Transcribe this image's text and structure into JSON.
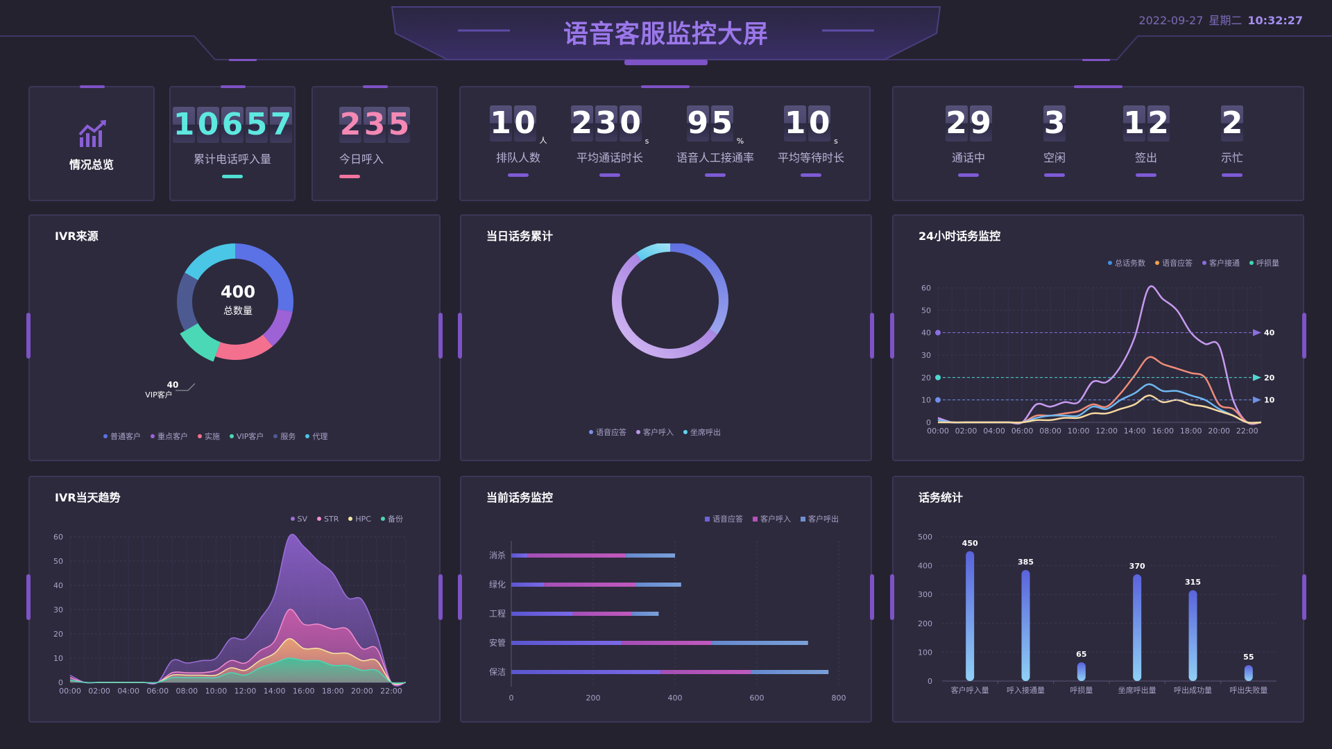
{
  "header": {
    "title": "语音客服监控大屏",
    "date": "2022-09-27",
    "weekday": "星期二",
    "time": "10:32:27"
  },
  "overview": {
    "label": "情况总览",
    "icon": "chart-trend-icon"
  },
  "top_stats": [
    {
      "value": "10657",
      "label": "累计电话呼入量",
      "color": "#4fe0d4"
    },
    {
      "value": "235",
      "label": "今日呼入",
      "color": "#f3739f"
    }
  ],
  "queue_stats": [
    {
      "value": "10",
      "unit": "人",
      "label": "排队人数"
    },
    {
      "value": "230",
      "unit": "s",
      "label": "平均通话时长"
    },
    {
      "value": "95",
      "unit": "%",
      "label": "语音人工接通率"
    },
    {
      "value": "10",
      "unit": "s",
      "label": "平均等待时长"
    }
  ],
  "agent_stats": [
    {
      "value": "29",
      "label": "通话中"
    },
    {
      "value": "3",
      "label": "空闲"
    },
    {
      "value": "12",
      "label": "签出"
    },
    {
      "value": "2",
      "label": "示忙"
    }
  ],
  "ivr_source": {
    "title": "IVR来源",
    "center_value": "400",
    "center_label": "总数量",
    "callout_value": "40",
    "callout_label": "VIP客户",
    "legend": [
      {
        "name": "普通客户",
        "color": "#5a72e6"
      },
      {
        "name": "重点客户",
        "color": "#9d62d6"
      },
      {
        "name": "实施",
        "color": "#f4708f"
      },
      {
        "name": "VIP客户",
        "color": "#4bd8b7"
      },
      {
        "name": "服务",
        "color": "#4d5a92"
      },
      {
        "name": "代理",
        "color": "#4ac6e6"
      }
    ]
  },
  "daily_calls": {
    "title": "当日话务累计",
    "legend": [
      {
        "name": "语音应答",
        "color": "#7d8fe8"
      },
      {
        "name": "客户呼入",
        "color": "#b89ae9"
      },
      {
        "name": "坐席呼出",
        "color": "#5fd6ef"
      }
    ]
  },
  "monitor_24h": {
    "title": "24小时话务监控",
    "legend": [
      {
        "name": "总话务数",
        "color": "#3f8fe6"
      },
      {
        "name": "语音应答",
        "color": "#f2a14c"
      },
      {
        "name": "客户接通",
        "color": "#8a6fe0"
      },
      {
        "name": "呼损量",
        "color": "#3fd8b0"
      }
    ],
    "ref_labels": [
      "40",
      "20",
      "10"
    ]
  },
  "ivr_trend": {
    "title": "IVR当天趋势",
    "legend": [
      {
        "name": "SV",
        "color": "#9b6fd9"
      },
      {
        "name": "STR",
        "color": "#f28ed0"
      },
      {
        "name": "HPC",
        "color": "#f7e6a6"
      },
      {
        "name": "备份",
        "color": "#4dd6b4"
      }
    ]
  },
  "current_monitor": {
    "title": "当前话务监控",
    "legend": [
      {
        "name": "语音应答",
        "color": "#6e62d9"
      },
      {
        "name": "客户呼入",
        "color": "#b353b8"
      },
      {
        "name": "客户呼出",
        "color": "#6f8fcf"
      }
    ]
  },
  "call_stats": {
    "title": "话务统计"
  },
  "chart_data": [
    {
      "id": "ivr-source",
      "type": "pie",
      "categories": [
        "普通客户",
        "重点客户",
        "实施",
        "VIP客户",
        "服务",
        "代理"
      ],
      "values": [
        100,
        40,
        60,
        40,
        60,
        60
      ],
      "total": 400
    },
    {
      "id": "daily-calls",
      "type": "pie",
      "categories": [
        "语音应答",
        "客户呼入",
        "坐席呼出"
      ],
      "values": [
        35,
        55,
        10
      ]
    },
    {
      "id": "monitor-24h",
      "type": "line",
      "x": [
        "00:00",
        "01:00",
        "02:00",
        "03:00",
        "04:00",
        "05:00",
        "06:00",
        "07:00",
        "08:00",
        "09:00",
        "10:00",
        "11:00",
        "12:00",
        "13:00",
        "14:00",
        "15:00",
        "16:00",
        "17:00",
        "18:00",
        "19:00",
        "20:00",
        "21:00",
        "22:00",
        "23:00"
      ],
      "xticks": [
        "00:00",
        "02:00",
        "04:00",
        "06:00",
        "08:00",
        "10:00",
        "12:00",
        "14:00",
        "16:00",
        "18:00",
        "20:00",
        "22:00"
      ],
      "ylim": [
        0,
        60
      ],
      "yticks": [
        0,
        10,
        20,
        30,
        40,
        50,
        60
      ],
      "series": [
        {
          "color": "#c79af0",
          "values": [
            2,
            0,
            0,
            0,
            0,
            0,
            0,
            8,
            7,
            9,
            9,
            18,
            18,
            25,
            38,
            60,
            55,
            50,
            40,
            35,
            34,
            10,
            0,
            0
          ]
        },
        {
          "color": "#f08c7a",
          "values": [
            1,
            0,
            0,
            0,
            0,
            0,
            0,
            3,
            3,
            4,
            5,
            8,
            7,
            13,
            21,
            29,
            26,
            24,
            22,
            20,
            8,
            6,
            0,
            0
          ]
        },
        {
          "color": "#6fb8f0",
          "values": [
            1,
            0,
            0,
            0,
            0,
            0,
            0,
            2,
            3,
            3,
            3,
            7,
            6,
            10,
            13,
            17,
            14,
            14,
            12,
            10,
            6,
            3,
            0,
            0
          ]
        },
        {
          "color": "#f7d9a0",
          "values": [
            0,
            0,
            0,
            0,
            0,
            0,
            0,
            1,
            1,
            2,
            2,
            4,
            4,
            6,
            8,
            12,
            9,
            10,
            8,
            7,
            5,
            3,
            0,
            0
          ]
        }
      ],
      "reference_lines": [
        40,
        20,
        10
      ]
    },
    {
      "id": "ivr-trend",
      "type": "area",
      "x": [
        "00:00",
        "01:00",
        "02:00",
        "03:00",
        "04:00",
        "05:00",
        "06:00",
        "07:00",
        "08:00",
        "09:00",
        "10:00",
        "11:00",
        "12:00",
        "13:00",
        "14:00",
        "15:00",
        "16:00",
        "17:00",
        "18:00",
        "19:00",
        "20:00",
        "21:00",
        "22:00",
        "23:00"
      ],
      "xticks": [
        "00:00",
        "02:00",
        "04:00",
        "06:00",
        "08:00",
        "10:00",
        "12:00",
        "14:00",
        "16:00",
        "18:00",
        "20:00",
        "22:00"
      ],
      "ylim": [
        0,
        60
      ],
      "yticks": [
        0,
        10,
        20,
        30,
        40,
        50,
        60
      ],
      "series": [
        {
          "name": "SV",
          "color": "#8a5fc9",
          "values": [
            3,
            0,
            0,
            0,
            0,
            0,
            0,
            9,
            8,
            9,
            10,
            18,
            18,
            26,
            36,
            60,
            56,
            50,
            45,
            35,
            34,
            20,
            0,
            0
          ]
        },
        {
          "name": "STR",
          "color": "#c85aa6",
          "values": [
            2,
            0,
            0,
            0,
            0,
            0,
            0,
            4,
            4,
            4,
            5,
            9,
            8,
            13,
            17,
            30,
            24,
            24,
            22,
            22,
            14,
            14,
            0,
            0
          ]
        },
        {
          "name": "HPC",
          "color": "#e8a272",
          "values": [
            1,
            0,
            0,
            0,
            0,
            0,
            0,
            3,
            3,
            3,
            3,
            6,
            5,
            9,
            12,
            18,
            14,
            14,
            12,
            12,
            9,
            9,
            0,
            0
          ]
        },
        {
          "name": "备份",
          "color": "#3fbf9c",
          "values": [
            1,
            0,
            0,
            0,
            0,
            0,
            0,
            2,
            2,
            2,
            2,
            4,
            3,
            6,
            8,
            10,
            9,
            9,
            7,
            7,
            5,
            5,
            0,
            0
          ]
        }
      ]
    },
    {
      "id": "current-monitor",
      "type": "bar",
      "categories": [
        "消杀",
        "绿化",
        "工程",
        "安管",
        "保洁"
      ],
      "xlim": [
        0,
        800
      ],
      "xticks": [
        0,
        200,
        400,
        600,
        800
      ],
      "series": [
        {
          "name": "语音应答",
          "values": [
            40,
            80,
            150,
            270,
            365
          ]
        },
        {
          "name": "客户呼入",
          "values": [
            240,
            225,
            145,
            220,
            220
          ]
        },
        {
          "name": "客户呼出",
          "values": [
            120,
            110,
            65,
            235,
            190
          ]
        }
      ]
    },
    {
      "id": "call-stats",
      "type": "bar",
      "categories": [
        "客户呼入量",
        "呼入接通量",
        "呼损量",
        "坐席呼出量",
        "呼出成功量",
        "呼出失败量"
      ],
      "values": [
        450,
        385,
        65,
        370,
        315,
        55
      ],
      "ylim": [
        0,
        500
      ],
      "yticks": [
        0,
        100,
        200,
        300,
        400,
        500
      ]
    }
  ]
}
